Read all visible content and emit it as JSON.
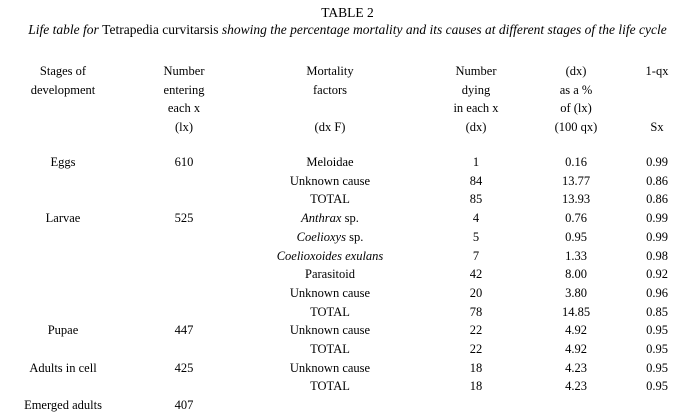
{
  "table": {
    "label": "TABLE 2",
    "caption_pre": "Life table for ",
    "caption_species": "Tetrapedia curvitarsis",
    "caption_post": " showing the percentage mortality and its causes at different stages of the life cycle",
    "headers": {
      "stage": [
        "Stages of",
        "development",
        "",
        ""
      ],
      "lx": [
        "Number",
        "entering",
        "each x",
        "(lx)"
      ],
      "mortality": [
        "Mortality",
        "factors",
        "",
        "(dx F)"
      ],
      "dx": [
        "Number",
        "dying",
        "in each x",
        "(dx)"
      ],
      "pct": [
        "(dx)",
        "as a %",
        "of (lx)",
        "(100 qx)"
      ],
      "sx": [
        "1-qx",
        "",
        "",
        "Sx"
      ]
    },
    "rows": [
      {
        "stage": "Eggs",
        "lx": "610",
        "factor": "Meloidae",
        "italic": false,
        "dx": "1",
        "pct": "0.16",
        "sx": "0.99"
      },
      {
        "stage": "",
        "lx": "",
        "factor": "Unknown cause",
        "italic": false,
        "dx": "84",
        "pct": "13.77",
        "sx": "0.86"
      },
      {
        "stage": "",
        "lx": "",
        "factor": "TOTAL",
        "italic": false,
        "dx": "85",
        "pct": "13.93",
        "sx": "0.86"
      },
      {
        "stage": "Larvae",
        "lx": "525",
        "factor": "Anthrax",
        "factor_suffix": " sp.",
        "italic": true,
        "dx": "4",
        "pct": "0.76",
        "sx": "0.99"
      },
      {
        "stage": "",
        "lx": "",
        "factor": "Coelioxys",
        "factor_suffix": " sp.",
        "italic": true,
        "dx": "5",
        "pct": "0.95",
        "sx": "0.99"
      },
      {
        "stage": "",
        "lx": "",
        "factor": "Coelioxoides exulans",
        "italic": true,
        "dx": "7",
        "pct": "1.33",
        "sx": "0.98"
      },
      {
        "stage": "",
        "lx": "",
        "factor": "Parasitoid",
        "italic": false,
        "dx": "42",
        "pct": "8.00",
        "sx": "0.92"
      },
      {
        "stage": "",
        "lx": "",
        "factor": "Unknown cause",
        "italic": false,
        "dx": "20",
        "pct": "3.80",
        "sx": "0.96"
      },
      {
        "stage": "",
        "lx": "",
        "factor": "TOTAL",
        "italic": false,
        "dx": "78",
        "pct": "14.85",
        "sx": "0.85"
      },
      {
        "stage": "Pupae",
        "lx": "447",
        "factor": "Unknown cause",
        "italic": false,
        "dx": "22",
        "pct": "4.92",
        "sx": "0.95"
      },
      {
        "stage": "",
        "lx": "",
        "factor": "TOTAL",
        "italic": false,
        "dx": "22",
        "pct": "4.92",
        "sx": "0.95"
      },
      {
        "stage": "Adults in cell",
        "lx": "425",
        "factor": "Unknown cause",
        "italic": false,
        "dx": "18",
        "pct": "4.23",
        "sx": "0.95"
      },
      {
        "stage": "",
        "lx": "",
        "factor": "TOTAL",
        "italic": false,
        "dx": "18",
        "pct": "4.23",
        "sx": "0.95"
      },
      {
        "stage": "Emerged adults",
        "lx": "407",
        "factor": "",
        "italic": false,
        "dx": "",
        "pct": "",
        "sx": ""
      }
    ]
  }
}
